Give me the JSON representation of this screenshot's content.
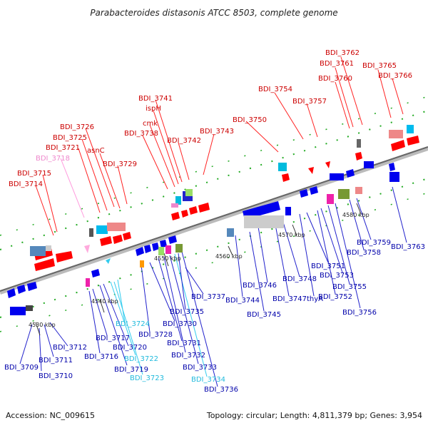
{
  "title": "Parabacteroides distasonis ATCC 8503, complete genome",
  "footer": {
    "accession": "Accession: NC_009615",
    "topology": "Topology: circular; Length: 4,811,379 bp; Genes: 3,954"
  },
  "colors": {
    "backbone": "#888888",
    "forward": "#ff0000",
    "reverse": "#0000ee",
    "red_label": "#cc0000",
    "blue_label": "#0000aa",
    "pink_label": "#ee88cc",
    "cyan_label": "#22bbdd",
    "dot": "#22aa22"
  },
  "ticks": [
    "4530 kbp",
    "4540 kbp",
    "4550 kbp",
    "4560 kbp",
    "4570 kbp",
    "4580 kbp"
  ],
  "labels_top": [
    {
      "name": "BDI_3714",
      "color": "red"
    },
    {
      "name": "BDI_3715",
      "color": "red"
    },
    {
      "name": "BDI_3718",
      "color": "pink"
    },
    {
      "name": "BDI_3721",
      "color": "red"
    },
    {
      "name": "BDI_3725",
      "color": "red"
    },
    {
      "name": "BDI_3726",
      "color": "red"
    },
    {
      "name": "asnC",
      "color": "red"
    },
    {
      "name": "BDI_3729",
      "color": "red"
    },
    {
      "name": "BDI_3738",
      "color": "red"
    },
    {
      "name": "cmk",
      "color": "red"
    },
    {
      "name": "ispH",
      "color": "red"
    },
    {
      "name": "BDI_3741",
      "color": "red"
    },
    {
      "name": "BDI_3742",
      "color": "red"
    },
    {
      "name": "BDI_3743",
      "color": "red"
    },
    {
      "name": "BDI_3750",
      "color": "red"
    },
    {
      "name": "BDI_3754",
      "color": "red"
    },
    {
      "name": "BDI_3757",
      "color": "red"
    },
    {
      "name": "BDI_3760",
      "color": "red"
    },
    {
      "name": "BDI_3761",
      "color": "red"
    },
    {
      "name": "BDI_3762",
      "color": "red"
    },
    {
      "name": "BDI_3765",
      "color": "red"
    },
    {
      "name": "BDI_3766",
      "color": "red"
    }
  ],
  "labels_bottom": [
    {
      "name": "BDI_3709",
      "color": "blue"
    },
    {
      "name": "BDI_3710",
      "color": "blue"
    },
    {
      "name": "BDI_3711",
      "color": "blue"
    },
    {
      "name": "BDI_3712",
      "color": "blue"
    },
    {
      "name": "BDI_3716",
      "color": "blue"
    },
    {
      "name": "BDI_3717",
      "color": "blue"
    },
    {
      "name": "BDI_3719",
      "color": "blue"
    },
    {
      "name": "BDI_3720",
      "color": "blue"
    },
    {
      "name": "BDI_3722",
      "color": "cyan"
    },
    {
      "name": "BDI_3723",
      "color": "cyan"
    },
    {
      "name": "BDI_3724",
      "color": "cyan"
    },
    {
      "name": "BDI_3728",
      "color": "blue"
    },
    {
      "name": "BDI_3730",
      "color": "blue"
    },
    {
      "name": "BDI_3731",
      "color": "blue"
    },
    {
      "name": "BDI_3732",
      "color": "blue"
    },
    {
      "name": "BDI_3733",
      "color": "blue"
    },
    {
      "name": "BDI_3734",
      "color": "cyan"
    },
    {
      "name": "BDI_3735",
      "color": "blue"
    },
    {
      "name": "BDI_3736",
      "color": "blue"
    },
    {
      "name": "BDI_3737",
      "color": "blue"
    },
    {
      "name": "BDI_3744",
      "color": "blue"
    },
    {
      "name": "BDI_3745",
      "color": "blue"
    },
    {
      "name": "BDI_3746",
      "color": "blue"
    },
    {
      "name": "BDI_3747",
      "color": "blue"
    },
    {
      "name": "BDI_3748",
      "color": "blue"
    },
    {
      "name": "thyA",
      "color": "blue"
    },
    {
      "name": "BDI_3751",
      "color": "blue"
    },
    {
      "name": "BDI_3752",
      "color": "blue"
    },
    {
      "name": "BDI_3753",
      "color": "blue"
    },
    {
      "name": "BDI_3755",
      "color": "blue"
    },
    {
      "name": "BDI_3756",
      "color": "blue"
    },
    {
      "name": "BDI_3758",
      "color": "blue"
    },
    {
      "name": "BDI_3759",
      "color": "blue"
    },
    {
      "name": "BDI_3763",
      "color": "blue"
    }
  ]
}
